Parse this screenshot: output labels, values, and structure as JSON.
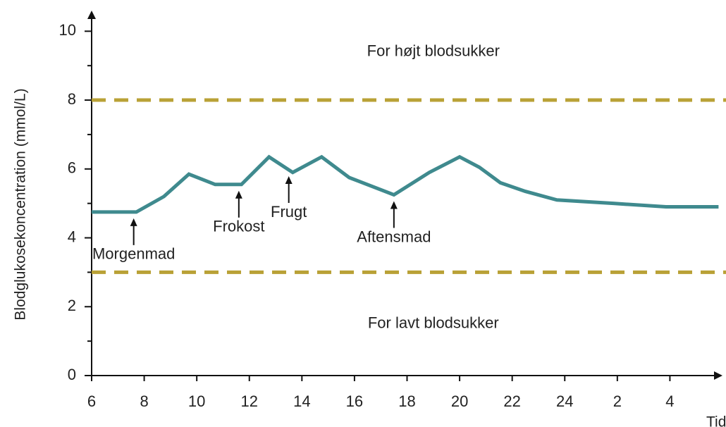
{
  "chart_data": {
    "type": "line",
    "x_label": "Tid",
    "y_label": "Blodglukosekoncentration (mmol/L)",
    "x": [
      6,
      7.7,
      8.75,
      9.7,
      10.7,
      11.7,
      12.75,
      13.65,
      14.75,
      15.8,
      17.5,
      18.85,
      20,
      20.75,
      21.55,
      22.5,
      23.7,
      25.85,
      27.85,
      29.85
    ],
    "series": [
      {
        "name": "Blodglukose",
        "color": "#3f8a8e",
        "values": [
          4.75,
          4.75,
          5.2,
          5.85,
          5.55,
          5.55,
          6.35,
          5.9,
          6.35,
          5.75,
          5.25,
          5.9,
          6.35,
          6.05,
          5.6,
          5.35,
          5.1,
          5.0,
          4.9,
          4.9
        ]
      }
    ],
    "xlim": [
      6,
      30
    ],
    "ylim": [
      0,
      10.6
    ],
    "xticks": [
      6,
      8,
      10,
      12,
      14,
      16,
      18,
      20,
      22,
      24,
      {
        "value": 26,
        "label": "2"
      },
      {
        "value": 28,
        "label": "4"
      }
    ],
    "yticks": [
      0,
      2,
      4,
      6,
      8,
      10
    ],
    "yminorticks": [
      1,
      3,
      5,
      7,
      9
    ],
    "thresholds": [
      {
        "value": 8,
        "color": "#b9a136"
      },
      {
        "value": 3,
        "color": "#b9a136"
      }
    ],
    "regions": [
      {
        "text": "For højt blodsukker",
        "x": 19,
        "y": 9.4
      },
      {
        "text": "For lavt blodsukker",
        "x": 19,
        "y": 1.5
      }
    ],
    "annotations": [
      {
        "text": "Morgenmad",
        "x": 7.6
      },
      {
        "text": "Frokost",
        "x": 11.6
      },
      {
        "text": "Frugt",
        "x": 13.5
      },
      {
        "text": "Aftensmad",
        "x": 17.5
      }
    ]
  }
}
